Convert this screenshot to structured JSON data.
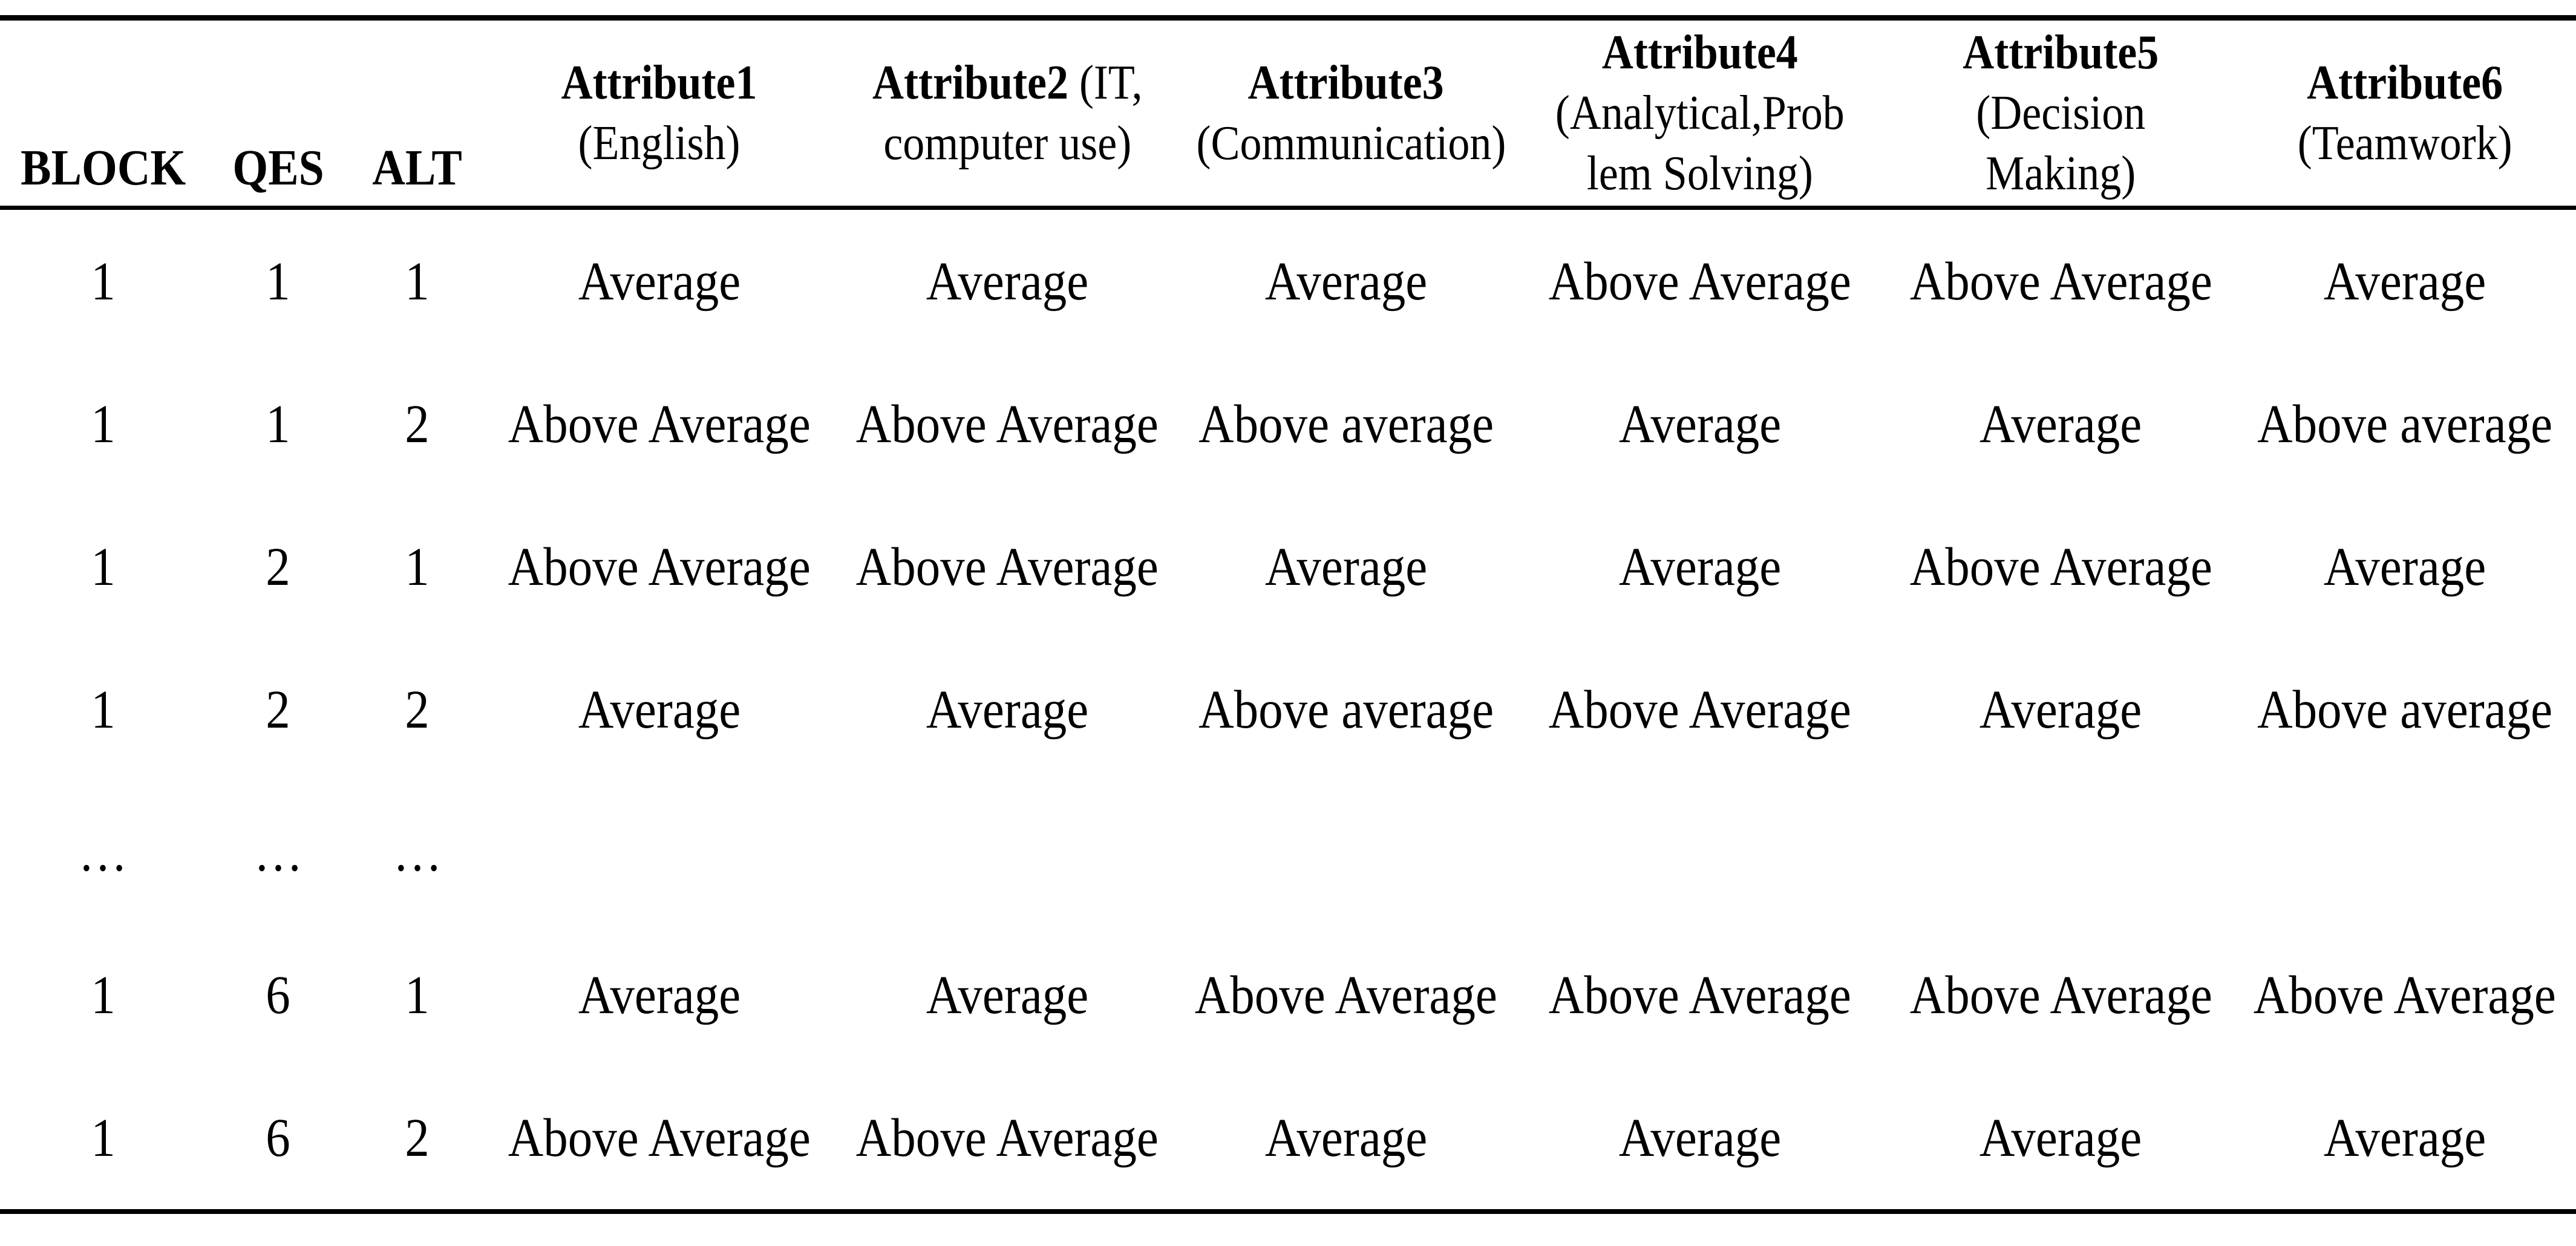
{
  "colors": {
    "text": "#000000",
    "background": "#ffffff",
    "rule": "#000000"
  },
  "table": {
    "header": {
      "block": "BLOCK",
      "qes": "QES",
      "alt": "ALT",
      "attributes": [
        {
          "name": "Attribute1",
          "line1_rest": "",
          "line2": "(English)",
          "line3": ""
        },
        {
          "name": "Attribute2",
          "line1_rest": " (IT,",
          "line2": "computer use)",
          "line3": ""
        },
        {
          "name": "Attribute3",
          "line1_rest": "",
          "line2": "(Communication)",
          "line3": ""
        },
        {
          "name": "Attribute4",
          "line1_rest": "",
          "line2": "(Analytical,Prob",
          "line3": "lem Solving)"
        },
        {
          "name": "Attribute5",
          "line1_rest": "",
          "line2": "(Decision",
          "line3": "Making)"
        },
        {
          "name": "Attribute6",
          "line1_rest": "",
          "line2": "(Teamwork)",
          "line3": ""
        }
      ]
    },
    "rows": [
      [
        "1",
        "1",
        "1",
        "Average",
        "Average",
        "Average",
        "Above Average",
        "Above Average",
        "Average"
      ],
      [
        "1",
        "1",
        "2",
        "Above Average",
        "Above Average",
        "Above average",
        "Average",
        "Average",
        "Above average"
      ],
      [
        "1",
        "2",
        "1",
        "Above Average",
        "Above Average",
        "Average",
        "Average",
        "Above Average",
        "Average"
      ],
      [
        "1",
        "2",
        "2",
        "Average",
        "Average",
        "Above average",
        "Above Average",
        "Average",
        "Above average"
      ],
      [
        "…",
        "…",
        "…",
        "",
        "",
        "",
        "",
        "",
        ""
      ],
      [
        "1",
        "6",
        "1",
        "Average",
        "Average",
        "Above Average",
        "Above Average",
        "Above Average",
        "Above Average"
      ],
      [
        "1",
        "6",
        "2",
        "Above Average",
        "Above Average",
        "Average",
        "Average",
        "Average",
        "Average"
      ]
    ]
  }
}
